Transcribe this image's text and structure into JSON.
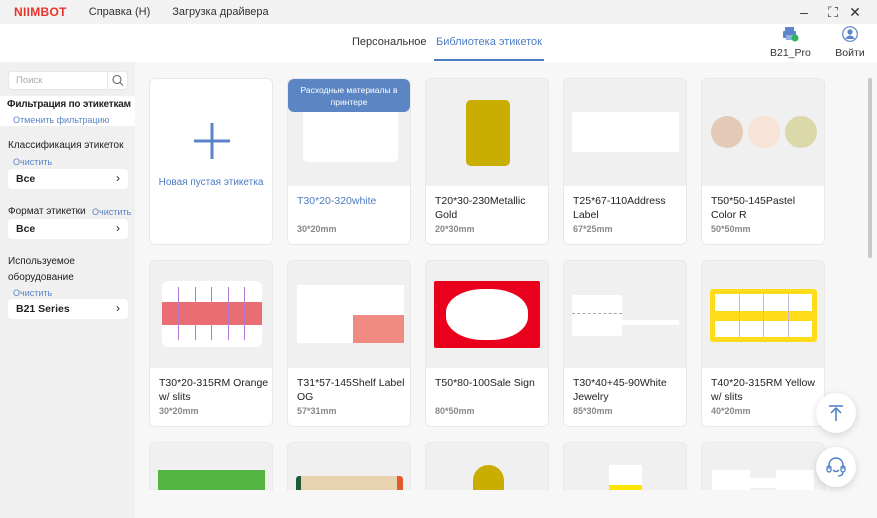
{
  "app": {
    "logo": "NIIMBOT",
    "menu": [
      "Справка (H)",
      "Загрузка драйвера"
    ]
  },
  "header": {
    "tabs": [
      {
        "label": "Персональное",
        "active": false
      },
      {
        "label": "Библиотека этикеток",
        "active": true
      }
    ],
    "printer": "B21_Pro",
    "login": "Войти"
  },
  "sidebar": {
    "search_placeholder": "Поиск",
    "filter_title": "Фильтрация по этикеткам",
    "cancel_filter": "Отменить фильтрацию",
    "classification": {
      "label": "Классификация этикеток",
      "clear": "Очистить",
      "value": "Все"
    },
    "format": {
      "label": "Формат этикетки",
      "clear": "Очистить",
      "value": "Все"
    },
    "equipment": {
      "label": "Используемое оборудование",
      "clear": "Очистить",
      "value": "B21 Series"
    }
  },
  "main": {
    "new_label": "Новая пустая этикетка",
    "badge": "Расходные материалы в принтере",
    "cards": [
      {
        "name": "T30*20-320white",
        "size": "30*20mm",
        "thumb": "white",
        "highlight": true
      },
      {
        "name": "T20*30-230Metallic Gold",
        "size": "20*30mm",
        "thumb": "gold"
      },
      {
        "name": "T25*67-110Address Label",
        "size": "67*25mm",
        "thumb": "address"
      },
      {
        "name": "T50*50-145Pastel Color R",
        "size": "50*50mm",
        "thumb": "pastel"
      },
      {
        "name": "T30*20-315RM Orange w/ slits",
        "size": "30*20mm",
        "thumb": "orange"
      },
      {
        "name": "T31*57-145Shelf Label OG",
        "size": "57*31mm",
        "thumb": "shelf"
      },
      {
        "name": "T50*80-100Sale Sign",
        "size": "80*50mm",
        "thumb": "sale"
      },
      {
        "name": "T30*40+45-90White Jewelry",
        "size": "85*30mm",
        "thumb": "jewelry"
      },
      {
        "name": "T40*20-315RM Yellow w/ slits",
        "size": "40*20mm",
        "thumb": "yellow"
      },
      {
        "thumb": "green"
      },
      {
        "thumb": "floral"
      },
      {
        "thumb": "goldcircle"
      },
      {
        "thumb": "whiteyellow"
      },
      {
        "thumb": "cable"
      }
    ]
  },
  "colors": {
    "accent": "#4a7cc4",
    "brand": "#e8332a",
    "gold": "#c9ad00"
  }
}
